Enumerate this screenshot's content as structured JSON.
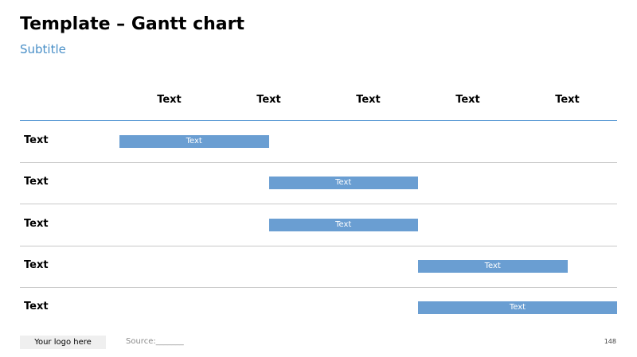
{
  "header": {
    "title": "Template – Gantt chart",
    "subtitle": "Subtitle"
  },
  "chart_data": {
    "type": "gantt",
    "title": "Template – Gantt chart",
    "subtitle": "Subtitle",
    "columns": [
      "Text",
      "Text",
      "Text",
      "Text",
      "Text"
    ],
    "x_range": [
      0,
      5
    ],
    "tasks": [
      {
        "label": "Text",
        "bar_label": "Text",
        "start": 0,
        "end": 1.5
      },
      {
        "label": "Text",
        "bar_label": "Text",
        "start": 1.5,
        "end": 3.0
      },
      {
        "label": "Text",
        "bar_label": "Text",
        "start": 1.5,
        "end": 3.0
      },
      {
        "label": "Text",
        "bar_label": "Text",
        "start": 3.0,
        "end": 4.5
      },
      {
        "label": "Text",
        "bar_label": "Text",
        "start": 3.0,
        "end": 5.0
      }
    ],
    "bar_color": "#6a9ed2",
    "header_line_color": "#5b9bd5",
    "row_line_color": "#c8c8c8"
  },
  "footer": {
    "logo": "Your logo here",
    "source": "Source:_______",
    "page_number": "148"
  },
  "colors": {
    "subtitle": "#4a90c8",
    "bar": "#6a9ed2"
  }
}
